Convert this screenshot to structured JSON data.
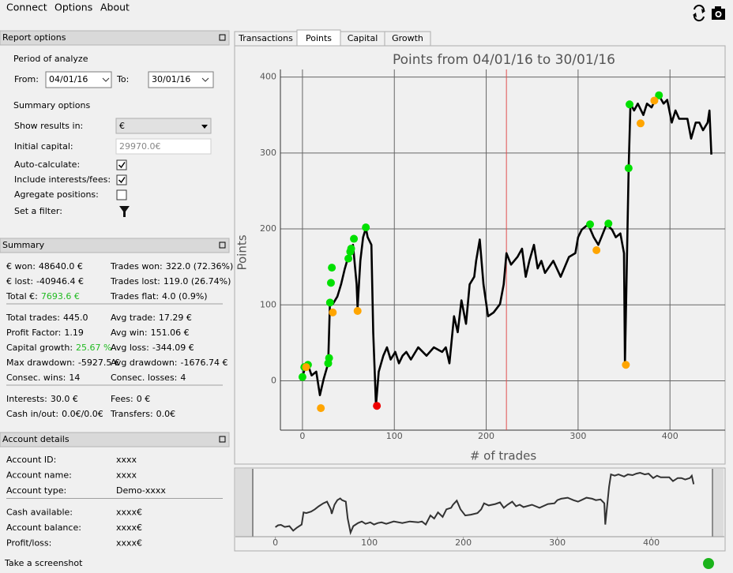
{
  "menu": [
    "Connect",
    "Options",
    "About"
  ],
  "report_options": {
    "title": "Report options",
    "period_label": "Period of analyze",
    "from_label": "From:",
    "from_value": "04/01/16",
    "to_label": "To:",
    "to_value": "30/01/16",
    "summary_options_label": "Summary options",
    "show_results": {
      "label": "Show results in:",
      "value": "€"
    },
    "initial_capital": {
      "label": "Initial capital:",
      "value": "29970.0€"
    },
    "checkboxes": [
      {
        "label": "Auto-calculate:",
        "checked": true
      },
      {
        "label": "Include interests/fees:",
        "checked": true
      },
      {
        "label": "Agregate positions:",
        "checked": false
      }
    ],
    "filter_label": "Set a filter:"
  },
  "summary": {
    "title": "Summary",
    "groups": [
      [
        [
          {
            "label": "€ won:",
            "value": "48640.0 €"
          },
          {
            "label": "Trades won:",
            "value": "322.0 (72.36%)"
          }
        ],
        [
          {
            "label": "€ lost:",
            "value": "-40946.4 €"
          },
          {
            "label": "Trades lost:",
            "value": "119.0 (26.74%)"
          }
        ],
        [
          {
            "label": "Total €:",
            "value": "7693.6 €",
            "value_color": "#22bb22"
          },
          {
            "label": "Trades flat:",
            "value": "4.0 (0.9%)"
          }
        ]
      ],
      [
        [
          {
            "label": "Total trades:",
            "value": "445.0"
          },
          {
            "label": "Avg trade:",
            "value": "17.29 €"
          }
        ],
        [
          {
            "label": "Profit Factor:",
            "value": "1.19"
          },
          {
            "label": "Avg win:",
            "value": "151.06 €"
          }
        ],
        [
          {
            "label": "Capital growth:",
            "value": "25.67 %",
            "value_color": "#22bb22"
          },
          {
            "label": "Avg loss:",
            "value": "-344.09 €"
          }
        ],
        [
          {
            "label": "Max drawdown:",
            "value": "-5927.5 €"
          },
          {
            "label": "Avg drawdown:",
            "value": "-1676.74 €"
          }
        ],
        [
          {
            "label": "Consec. wins:",
            "value": "14"
          },
          {
            "label": "Consec. losses:",
            "value": "4"
          }
        ]
      ],
      [
        [
          {
            "label": "Interests:",
            "value": "30.0 €"
          },
          {
            "label": "Fees:",
            "value": "0 €"
          }
        ],
        [
          {
            "label": "Cash in/out:",
            "value": "0.0€/0.0€"
          },
          {
            "label": "Transfers:",
            "value": "0.0€"
          }
        ]
      ]
    ]
  },
  "account": {
    "title": "Account details",
    "groups": [
      [
        {
          "label": "Account ID:",
          "value": "xxxx"
        },
        {
          "label": "Account name:",
          "value": "xxxx"
        },
        {
          "label": "Account type:",
          "value": "Demo-xxxx"
        }
      ],
      [
        {
          "label": "Cash available:",
          "value": "xxxx€"
        },
        {
          "label": "Account balance:",
          "value": "xxxx€"
        },
        {
          "label": "Profit/loss:",
          "value": "xxxx€"
        }
      ]
    ]
  },
  "tabs": {
    "items": [
      "Transactions",
      "Points",
      "Capital",
      "Growth"
    ],
    "active": 1
  },
  "chart": {
    "type": "line",
    "title": "Points from 04/01/16 to 30/01/16",
    "xlabel": "# of trades",
    "ylabel": "Points",
    "xlim": [
      -24,
      460
    ],
    "ylim": [
      -65,
      410
    ],
    "xticks": [
      0,
      100,
      200,
      300,
      400
    ],
    "yticks": [
      0,
      100,
      200,
      300,
      400
    ],
    "grid": true,
    "color": "#000000",
    "vline": {
      "x": 222,
      "color": "#e05050"
    },
    "line": {
      "x": [
        0,
        3,
        6,
        10,
        15,
        19,
        23,
        28,
        30,
        33,
        38,
        42,
        46,
        51,
        55,
        59,
        60,
        63,
        66,
        69,
        71,
        75,
        77,
        80,
        83,
        88,
        92,
        96,
        101,
        105,
        109,
        113,
        118,
        126,
        135,
        143,
        152,
        156,
        160,
        165,
        169,
        173,
        178,
        182,
        187,
        189,
        193,
        197,
        202,
        208,
        215,
        219,
        222,
        227,
        234,
        239,
        243,
        247,
        252,
        256,
        260,
        264,
        273,
        281,
        290,
        297,
        300,
        304,
        311,
        317,
        322,
        327,
        331,
        337,
        341,
        346,
        350,
        351,
        355,
        357,
        361,
        365,
        371,
        375,
        380,
        384,
        388,
        393,
        397,
        402,
        406,
        410,
        419,
        423,
        428,
        432,
        436,
        441,
        443,
        445
      ],
      "y": [
        5,
        18,
        21,
        7,
        12,
        -19,
        2,
        23,
        106,
        101,
        111,
        127,
        147,
        168,
        179,
        127,
        96,
        158,
        189,
        201,
        189,
        179,
        64,
        -32,
        12,
        33,
        44,
        28,
        38,
        23,
        33,
        38,
        28,
        44,
        33,
        44,
        38,
        44,
        23,
        85,
        64,
        106,
        75,
        127,
        137,
        158,
        186,
        127,
        85,
        90,
        101,
        127,
        168,
        153,
        163,
        174,
        137,
        158,
        179,
        148,
        158,
        142,
        158,
        137,
        163,
        168,
        189,
        199,
        206,
        189,
        179,
        194,
        206,
        199,
        189,
        194,
        168,
        23,
        280,
        365,
        356,
        365,
        350,
        365,
        360,
        370,
        376,
        365,
        370,
        340,
        356,
        345,
        345,
        319,
        340,
        340,
        330,
        340,
        356,
        298
      ]
    },
    "markers": [
      {
        "color": "#00e000",
        "x": [
          0,
          2,
          6,
          28,
          29,
          30,
          31,
          32,
          50,
          52,
          53,
          56,
          69,
          313,
          333,
          355,
          356,
          388
        ],
        "y": [
          5,
          18,
          21,
          23,
          30,
          103,
          129,
          149,
          161,
          170,
          174,
          187,
          202,
          206,
          207,
          280,
          364,
          376
        ]
      },
      {
        "color": "#ffa500",
        "x": [
          4,
          20,
          33,
          60,
          320,
          352,
          368,
          383
        ],
        "y": [
          18,
          -36,
          90,
          92,
          172,
          21,
          339,
          369
        ]
      },
      {
        "color": "#ee0000",
        "x": [
          81
        ],
        "y": [
          -33
        ]
      }
    ]
  },
  "overview": {
    "xlim": [
      -24,
      465
    ],
    "ylim": [
      -60,
      403
    ],
    "xticks": [
      0,
      100,
      200,
      300,
      400
    ],
    "color": "#333333"
  },
  "status": "Take a screenshot"
}
